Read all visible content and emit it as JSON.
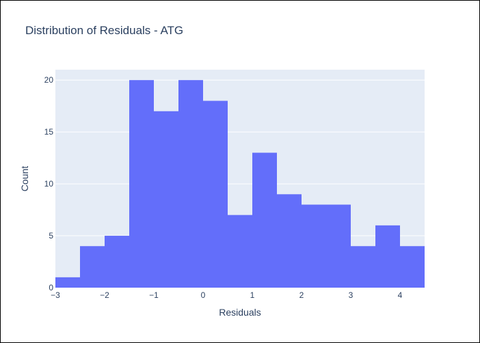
{
  "chart_data": {
    "type": "bar",
    "title": "Distribution of Residuals - ATG",
    "xlabel": "Residuals",
    "ylabel": "Count",
    "xlim": [
      -3,
      4.5
    ],
    "ylim": [
      0,
      21
    ],
    "bin_width": 0.5,
    "bins": [
      {
        "start": -3.0,
        "count": 1
      },
      {
        "start": -2.5,
        "count": 4
      },
      {
        "start": -2.0,
        "count": 5
      },
      {
        "start": -1.5,
        "count": 20
      },
      {
        "start": -1.0,
        "count": 17
      },
      {
        "start": -0.5,
        "count": 20
      },
      {
        "start": 0.0,
        "count": 18
      },
      {
        "start": 0.5,
        "count": 7
      },
      {
        "start": 1.0,
        "count": 13
      },
      {
        "start": 1.5,
        "count": 9
      },
      {
        "start": 2.0,
        "count": 8
      },
      {
        "start": 2.5,
        "count": 8
      },
      {
        "start": 3.0,
        "count": 4
      },
      {
        "start": 3.5,
        "count": 6
      },
      {
        "start": 4.0,
        "count": 4
      }
    ],
    "x_ticks": [
      -3,
      -2,
      -1,
      0,
      1,
      2,
      3,
      4
    ],
    "x_tick_labels": [
      "−3",
      "−2",
      "−1",
      "0",
      "1",
      "2",
      "3",
      "4"
    ],
    "y_ticks": [
      0,
      5,
      10,
      15,
      20
    ],
    "y_tick_labels": [
      "0",
      "5",
      "10",
      "15",
      "20"
    ],
    "grid": true,
    "colors": {
      "bar": "#636efa",
      "plot_bg": "#e5ecf6",
      "grid": "#ffffff",
      "text": "#2a3f5f"
    }
  }
}
